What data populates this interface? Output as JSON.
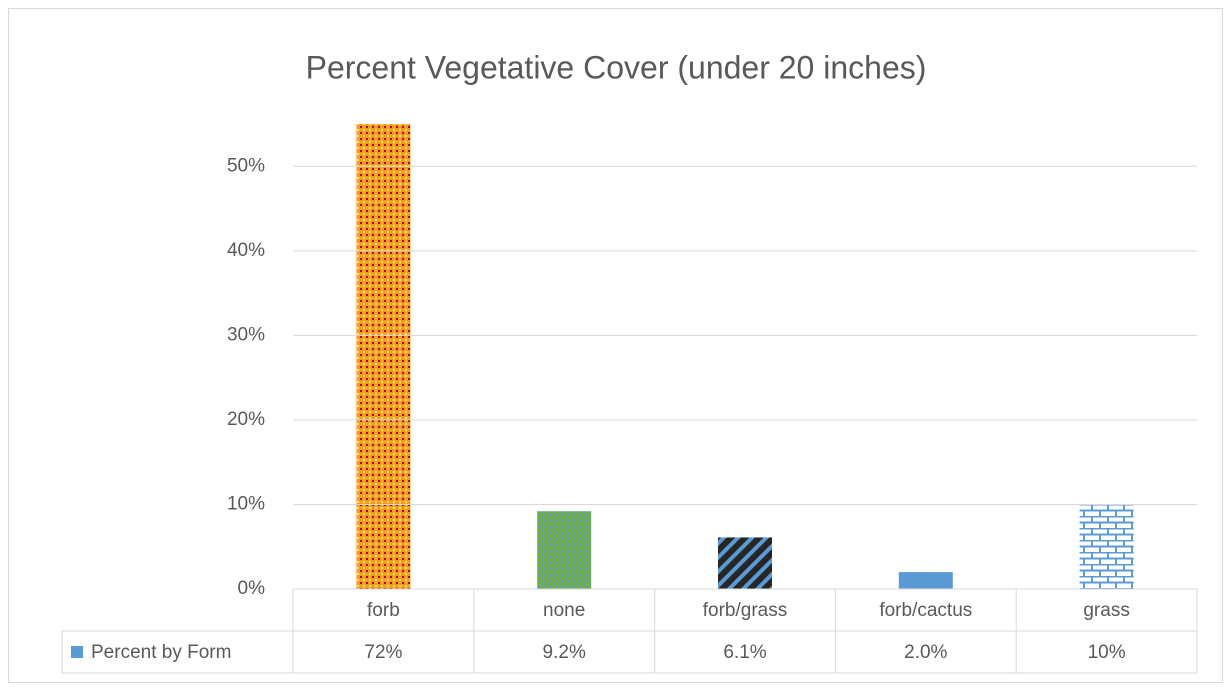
{
  "chart_data": {
    "type": "bar",
    "title": "Percent Vegetative Cover (under 20 inches)",
    "categories": [
      "forb",
      "none",
      "forb/grass",
      "forb/cactus",
      "grass"
    ],
    "series": [
      {
        "name": "Percent by Form",
        "color": "#5b9bd5",
        "values": [
          72,
          9.2,
          6.1,
          2.0,
          10
        ],
        "value_labels": [
          "72%",
          "9.2%",
          "6.1%",
          "2.0%",
          "10%"
        ]
      }
    ],
    "ylim": [
      0,
      55
    ],
    "yticks": [
      {
        "value": 0,
        "label": "0%"
      },
      {
        "value": 10,
        "label": "10%"
      },
      {
        "value": 20,
        "label": "20%"
      },
      {
        "value": 30,
        "label": "30%"
      },
      {
        "value": 40,
        "label": "40%"
      },
      {
        "value": 50,
        "label": "50%"
      }
    ],
    "grid": true
  }
}
